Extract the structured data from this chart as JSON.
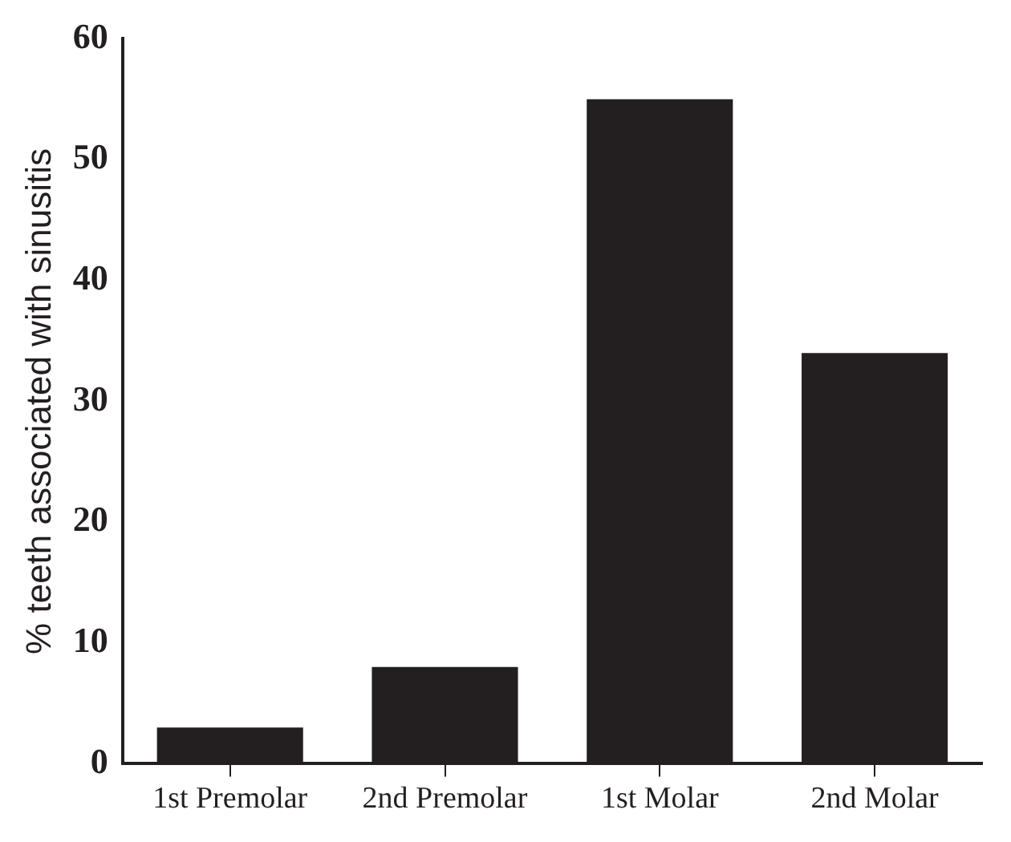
{
  "chart_data": {
    "type": "bar",
    "ylabel": "% teeth associated with sinusitis",
    "categories": [
      "1st Premolar",
      "2nd Premolar",
      "1st Molar",
      "2nd Molar"
    ],
    "values": [
      3,
      8,
      55,
      34
    ],
    "color": "#231f20",
    "ylim": [
      0,
      60
    ],
    "yticks": [
      0,
      10,
      20,
      30,
      40,
      50,
      60
    ],
    "grid": false,
    "legend": false
  }
}
